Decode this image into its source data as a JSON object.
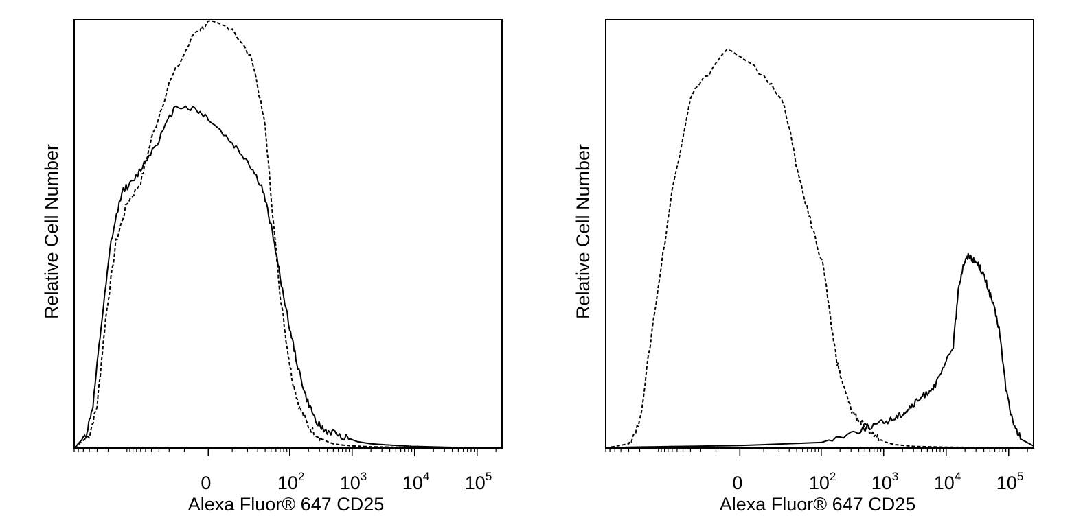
{
  "chart_data": [
    {
      "type": "line",
      "xlabel": "Alexa Fluor® 647 CD25",
      "ylabel": "Relative Cell Number",
      "x_scale": "biexponential",
      "x_ticks": [
        {
          "value": 0,
          "label": "0",
          "exp": ""
        },
        {
          "value": 100,
          "label": "10",
          "exp": "2"
        },
        {
          "value": 1000,
          "label": "10",
          "exp": "3"
        },
        {
          "value": 10000,
          "label": "10",
          "exp": "4"
        },
        {
          "value": 100000,
          "label": "10",
          "exp": "5"
        }
      ],
      "xlim": [
        -700,
        250000
      ],
      "ylim": [
        0,
        100
      ],
      "grid": false,
      "series": [
        {
          "style": "dashed",
          "x": [
            -700,
            -400,
            -300,
            -220,
            -150,
            -100,
            -60,
            -40,
            -20,
            -5,
            0,
            10,
            25,
            40,
            55,
            70,
            90,
            110,
            140,
            200,
            300,
            400,
            500,
            700,
            1000,
            2000,
            5000,
            10000,
            100000
          ],
          "y": [
            0,
            3,
            10,
            30,
            48,
            57,
            62,
            72,
            85,
            97,
            99,
            98,
            90,
            75,
            52,
            36,
            24,
            16,
            10,
            5,
            2.5,
            1.5,
            1,
            0.7,
            0.5,
            0.3,
            0.2,
            0.1,
            0
          ]
        },
        {
          "style": "solid",
          "x": [
            -700,
            -450,
            -350,
            -260,
            -180,
            -120,
            -80,
            -50,
            -30,
            -15,
            -5,
            0,
            10,
            20,
            35,
            50,
            70,
            100,
            130,
            180,
            250,
            350,
            500,
            800,
            1200,
            2000,
            4000,
            9000,
            100000
          ],
          "y": [
            0,
            3,
            10,
            28,
            48,
            60,
            62,
            67,
            72,
            80,
            79,
            77,
            71,
            67,
            61,
            52,
            40,
            28,
            20,
            12,
            7,
            4,
            3.5,
            2.5,
            1.5,
            1,
            0.7,
            0.4,
            0
          ]
        }
      ]
    },
    {
      "type": "line",
      "xlabel": "Alexa Fluor® 647 CD25",
      "ylabel": "Relative Cell Number",
      "x_scale": "biexponential",
      "x_ticks": [
        {
          "value": 0,
          "label": "0",
          "exp": ""
        },
        {
          "value": 100,
          "label": "10",
          "exp": "2"
        },
        {
          "value": 1000,
          "label": "10",
          "exp": "3"
        },
        {
          "value": 10000,
          "label": "10",
          "exp": "4"
        },
        {
          "value": 100000,
          "label": "10",
          "exp": "5"
        }
      ],
      "xlim": [
        -700,
        250000
      ],
      "ylim": [
        0,
        100
      ],
      "grid": false,
      "series": [
        {
          "style": "dashed",
          "x": [
            -700,
            -300,
            -200,
            -120,
            -60,
            -30,
            -5,
            10,
            25,
            45,
            70,
            110,
            140,
            180,
            230,
            300,
            380,
            500,
            700,
            1000,
            1500,
            3000,
            10000,
            100000,
            250000
          ],
          "y": [
            0,
            1,
            6,
            30,
            60,
            82,
            93,
            87,
            80,
            62,
            52,
            42,
            30,
            20,
            14,
            9,
            7,
            5,
            3,
            1.5,
            0.8,
            0.4,
            0.2,
            0.1,
            0
          ]
        },
        {
          "style": "solid",
          "x": [
            -700,
            -300,
            0,
            100,
            300,
            600,
            1000,
            1500,
            2000,
            2500,
            3500,
            5000,
            7000,
            10000,
            13000,
            16000,
            19000,
            23000,
            27000,
            32000,
            38000,
            45000,
            55000,
            70000,
            90000,
            120000,
            160000,
            250000
          ],
          "y": [
            0,
            0.2,
            0.6,
            1.3,
            3.5,
            5,
            6,
            7,
            8,
            9,
            11,
            13,
            15,
            20,
            24,
            38,
            43,
            45,
            44,
            43,
            41,
            38,
            34,
            28,
            14,
            5,
            2,
            0.5
          ]
        }
      ]
    }
  ]
}
